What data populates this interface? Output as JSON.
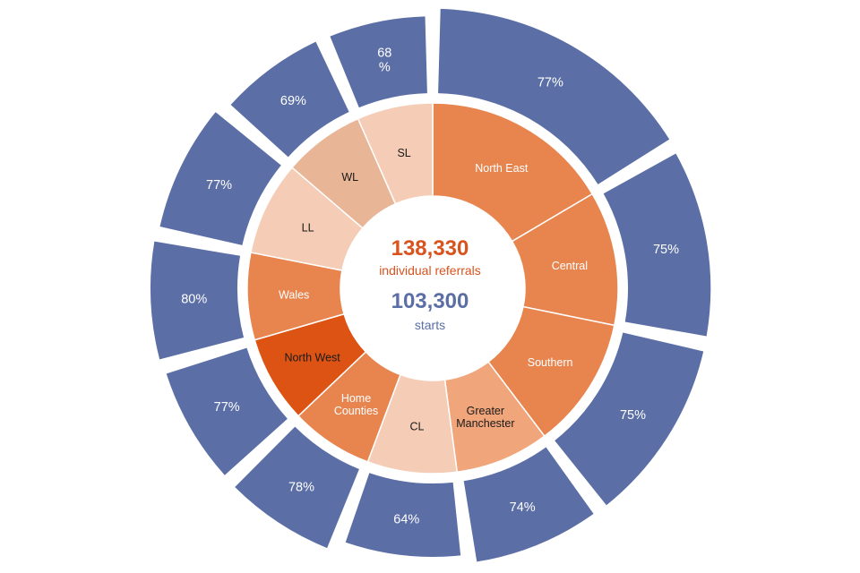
{
  "summary": {
    "referrals_value": "138,330",
    "referrals_label": "individual referrals",
    "starts_value": "103,300",
    "starts_label": "starts"
  },
  "colors": {
    "outer": "#5b6fa6",
    "orange": "#e8854f",
    "dark_orange": "#dc5313",
    "pale": "#f5ccb5",
    "peach": "#f0a57a",
    "tan": "#e8b597",
    "label_light": "#ffffff",
    "label_dark": "#1a1a1a"
  },
  "chart_data": {
    "type": "sunburst",
    "title": "",
    "center": {
      "individual_referrals": 138330,
      "starts": 103300
    },
    "segments": [
      {
        "name": "North East",
        "label_lines": [
          "North East"
        ],
        "share_pct": 16.5,
        "start_rate_pct": 77,
        "rate_label": "77%",
        "fill": "orange",
        "text": "label_light"
      },
      {
        "name": "Central",
        "label_lines": [
          "Central"
        ],
        "share_pct": 11.7,
        "start_rate_pct": 75,
        "rate_label": "75%",
        "fill": "orange",
        "text": "label_light"
      },
      {
        "name": "Southern",
        "label_lines": [
          "Southern"
        ],
        "share_pct": 11.5,
        "start_rate_pct": 75,
        "rate_label": "75%",
        "fill": "orange",
        "text": "label_light"
      },
      {
        "name": "Greater Manchester",
        "label_lines": [
          "Greater",
          "Manchester"
        ],
        "share_pct": 8.2,
        "start_rate_pct": 74,
        "rate_label": "74%",
        "fill": "peach",
        "text": "label_dark"
      },
      {
        "name": "CL",
        "label_lines": [
          "CL"
        ],
        "share_pct": 7.8,
        "start_rate_pct": 64,
        "rate_label": "64%",
        "fill": "pale",
        "text": "label_dark"
      },
      {
        "name": "Home Counties",
        "label_lines": [
          "Home",
          "Counties"
        ],
        "share_pct": 7.2,
        "start_rate_pct": 78,
        "rate_label": "78%",
        "fill": "orange",
        "text": "label_light"
      },
      {
        "name": "North West",
        "label_lines": [
          "North West"
        ],
        "share_pct": 7.6,
        "start_rate_pct": 77,
        "rate_label": "77%",
        "fill": "dark_orange",
        "text": "label_dark"
      },
      {
        "name": "Wales",
        "label_lines": [
          "Wales"
        ],
        "share_pct": 7.6,
        "start_rate_pct": 80,
        "rate_label": "80%",
        "fill": "orange",
        "text": "label_light"
      },
      {
        "name": "LL",
        "label_lines": [
          "LL"
        ],
        "share_pct": 8.2,
        "start_rate_pct": 77,
        "rate_label": "77%",
        "fill": "pale",
        "text": "label_dark"
      },
      {
        "name": "WL",
        "label_lines": [
          "WL"
        ],
        "share_pct": 7.1,
        "start_rate_pct": 69,
        "rate_label": "69%",
        "fill": "tan",
        "text": "label_dark"
      },
      {
        "name": "SL",
        "label_lines": [
          "SL"
        ],
        "share_pct": 6.6,
        "start_rate_pct": 68,
        "rate_label": "68\n%",
        "fill": "pale",
        "text": "label_dark"
      }
    ]
  }
}
